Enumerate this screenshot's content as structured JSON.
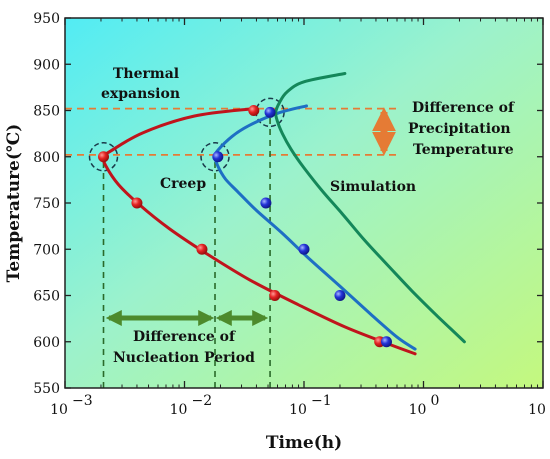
{
  "chart_data": {
    "type": "line",
    "xlabel": "Time(h)",
    "ylabel": "Temperature(℃)",
    "xscale": "log",
    "xlim": [
      0.001,
      10
    ],
    "ylim": [
      550,
      950
    ],
    "x_ticks": [
      {
        "value": 0.001,
        "base": "10",
        "exp": "−3"
      },
      {
        "value": 0.01,
        "base": "10",
        "exp": "−2"
      },
      {
        "value": 0.1,
        "base": "10",
        "exp": "−1"
      },
      {
        "value": 1,
        "base": "10",
        "exp": "0"
      },
      {
        "value": 10,
        "base": "10",
        "exp": "1"
      }
    ],
    "y_ticks": [
      550,
      600,
      650,
      700,
      750,
      800,
      850,
      900,
      950
    ],
    "background": "gradient cyan to green",
    "series": [
      {
        "name": "",
        "color": "#c0141c",
        "curve": [
          [
            0.038,
            852
          ],
          [
            0.012,
            844
          ],
          [
            0.0045,
            826
          ],
          [
            0.0024,
            806
          ],
          [
            0.0021,
            800
          ],
          [
            0.0022,
            790
          ],
          [
            0.0028,
            770
          ],
          [
            0.0042,
            748
          ],
          [
            0.0075,
            722
          ],
          [
            0.015,
            696
          ],
          [
            0.035,
            667
          ],
          [
            0.09,
            640
          ],
          [
            0.22,
            616
          ],
          [
            0.5,
            598
          ],
          [
            0.85,
            587
          ]
        ],
        "points": [
          [
            0.038,
            850
          ],
          [
            0.0021,
            800
          ],
          [
            0.004,
            750
          ],
          [
            0.014,
            700
          ],
          [
            0.057,
            650
          ],
          [
            0.43,
            600
          ]
        ]
      },
      {
        "name": "",
        "color": "#1e6fc4",
        "curve": [
          [
            0.105,
            855
          ],
          [
            0.06,
            847
          ],
          [
            0.035,
            834
          ],
          [
            0.025,
            822
          ],
          [
            0.019,
            807
          ],
          [
            0.018,
            800
          ],
          [
            0.019,
            790
          ],
          [
            0.022,
            776
          ],
          [
            0.028,
            762
          ],
          [
            0.04,
            742
          ],
          [
            0.065,
            718
          ],
          [
            0.11,
            690
          ],
          [
            0.2,
            660
          ],
          [
            0.36,
            630
          ],
          [
            0.6,
            605
          ],
          [
            0.85,
            592
          ]
        ],
        "points": [
          [
            0.052,
            848
          ],
          [
            0.019,
            800
          ],
          [
            0.048,
            750
          ],
          [
            0.1,
            700
          ],
          [
            0.2,
            650
          ],
          [
            0.49,
            600
          ]
        ]
      },
      {
        "name": "Simulation",
        "color": "#14875a",
        "curve": [
          [
            0.22,
            890
          ],
          [
            0.1,
            881
          ],
          [
            0.072,
            870
          ],
          [
            0.062,
            858
          ],
          [
            0.058,
            848
          ],
          [
            0.06,
            838
          ],
          [
            0.066,
            825
          ],
          [
            0.078,
            808
          ],
          [
            0.1,
            788
          ],
          [
            0.14,
            764
          ],
          [
            0.21,
            738
          ],
          [
            0.32,
            710
          ],
          [
            0.5,
            683
          ],
          [
            0.8,
            655
          ],
          [
            1.3,
            628
          ],
          [
            2.2,
            600
          ]
        ],
        "points": []
      }
    ],
    "guides": {
      "horizontal": [
        852,
        802
      ],
      "vertical": [
        {
          "x": 0.0021,
          "from": 550,
          "to": 800
        },
        {
          "x": 0.018,
          "from": 550,
          "to": 800
        },
        {
          "x": 0.052,
          "from": 550,
          "to": 848
        }
      ],
      "circles": [
        [
          0.0021,
          800
        ],
        [
          0.018,
          800
        ],
        [
          0.052,
          848
        ]
      ]
    },
    "annotations": {
      "thermal_line1": "Thermal",
      "thermal_line2": "expansion",
      "creep": "Creep",
      "simulation": "Simulation",
      "precip_line1": "Difference of",
      "precip_line2": "Precipitation",
      "precip_line3": "Temperature",
      "nucl_line1": "Difference of",
      "nucl_line2": "Nucleation Period"
    }
  }
}
